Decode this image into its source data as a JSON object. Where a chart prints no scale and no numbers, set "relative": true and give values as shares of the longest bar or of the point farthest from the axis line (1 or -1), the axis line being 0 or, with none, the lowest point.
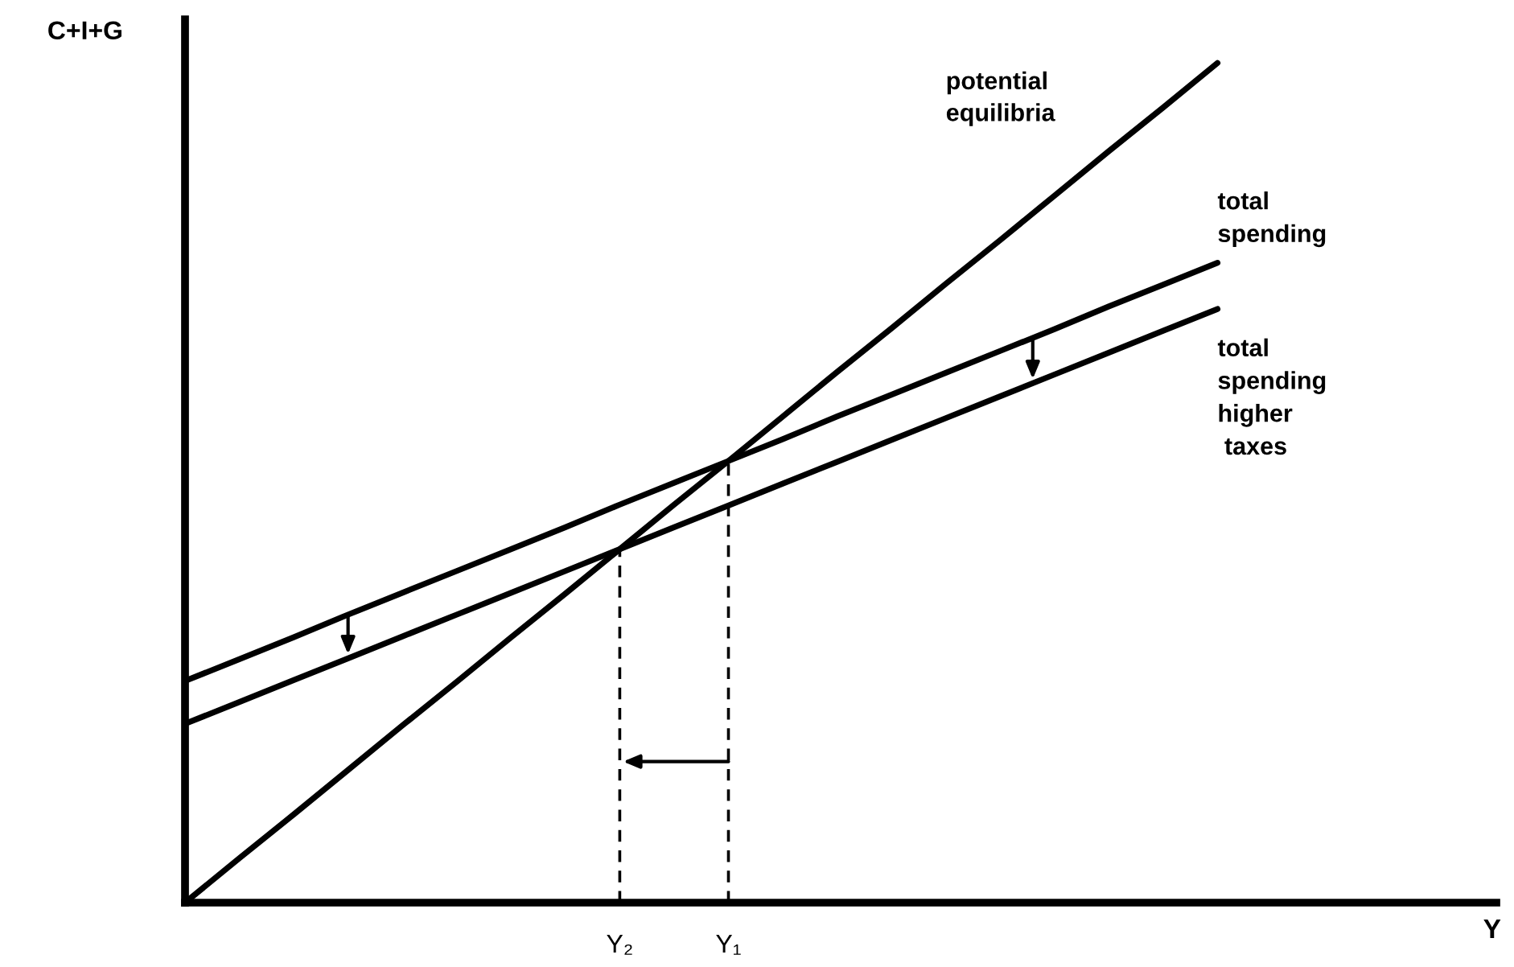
{
  "chart_data": {
    "type": "line",
    "relative": true,
    "annotations": [
      "Y"
    ],
    "ylabel": "C+I+G",
    "categories": [
      null,
      null,
      null,
      null,
      null,
      null,
      null,
      null,
      "Y₂",
      null,
      "Y₁",
      null,
      null,
      null,
      null,
      null,
      null,
      null,
      null,
      null
    ],
    "tick_labels": "x",
    "legend": false,
    "line_style": "solid",
    "marker": "none",
    "series": [
      {
        "name": "potential\nequilibria",
        "color": "#000000",
        "values": [
          0,
          0.053,
          0.105,
          0.158,
          0.211,
          0.263,
          0.316,
          0.368,
          0.421,
          0.474,
          0.526,
          0.579,
          0.632,
          0.684,
          0.737,
          0.789,
          0.842,
          0.895,
          0.947,
          1
        ]
      },
      {
        "name": "total\nspending",
        "color": "#000000",
        "values": [
          0.264,
          0.29,
          0.316,
          0.343,
          0.369,
          0.395,
          0.421,
          0.447,
          0.474,
          0.5,
          0.526,
          0.552,
          0.579,
          0.605,
          0.631,
          0.657,
          0.683,
          0.71,
          0.736,
          0.762
        ]
      },
      {
        "name": "total\nspending\nhigher\n taxes",
        "color": "#000000",
        "values": [
          0.213,
          0.239,
          0.265,
          0.291,
          0.317,
          0.343,
          0.369,
          0.395,
          0.421,
          0.447,
          0.473,
          0.499,
          0.525,
          0.551,
          0.577,
          0.603,
          0.629,
          0.655,
          0.681,
          0.707
        ]
      }
    ],
    "ref_lines": [
      {
        "axis": "x",
        "value": "Y₂",
        "line_style": "dashed",
        "color": "#000000"
      },
      {
        "axis": "x",
        "value": "Y₁",
        "line_style": "dashed",
        "color": "#000000"
      }
    ]
  }
}
